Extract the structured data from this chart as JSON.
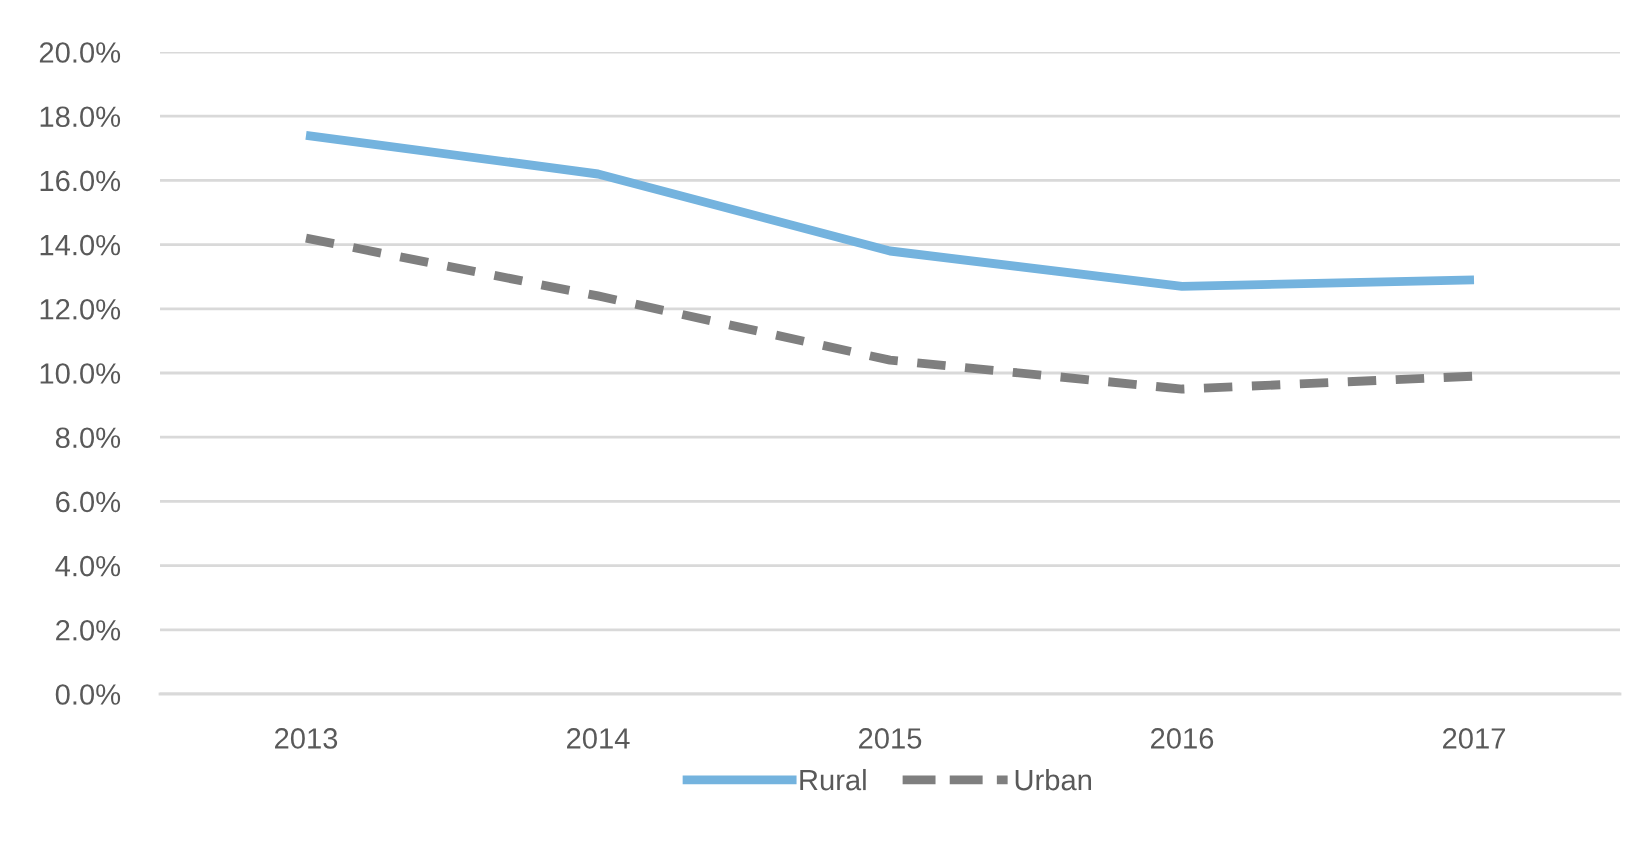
{
  "chart_data": {
    "type": "line",
    "categories": [
      "2013",
      "2014",
      "2015",
      "2016",
      "2017"
    ],
    "series": [
      {
        "name": "Rural",
        "color": "#74b3de",
        "line_style": "solid",
        "values": [
          17.4,
          16.2,
          13.8,
          12.7,
          12.9
        ]
      },
      {
        "name": "Urban",
        "color": "#7f7f7f",
        "line_style": "dashed",
        "values": [
          14.2,
          12.4,
          10.4,
          9.5,
          9.9
        ]
      }
    ],
    "ylim": [
      0,
      20
    ],
    "yticks": [
      {
        "value": 0,
        "label": "0.0%"
      },
      {
        "value": 2,
        "label": "2.0%"
      },
      {
        "value": 4,
        "label": "4.0%"
      },
      {
        "value": 6,
        "label": "6.0%"
      },
      {
        "value": 8,
        "label": "8.0%"
      },
      {
        "value": 10,
        "label": "10.0%"
      },
      {
        "value": 12,
        "label": "12.0%"
      },
      {
        "value": 14,
        "label": "14.0%"
      },
      {
        "value": 16,
        "label": "16.0%"
      },
      {
        "value": 18,
        "label": "18.0%"
      },
      {
        "value": 20,
        "label": "20.0%"
      }
    ],
    "grid": "y",
    "legend": "bottom",
    "marker": "none"
  }
}
